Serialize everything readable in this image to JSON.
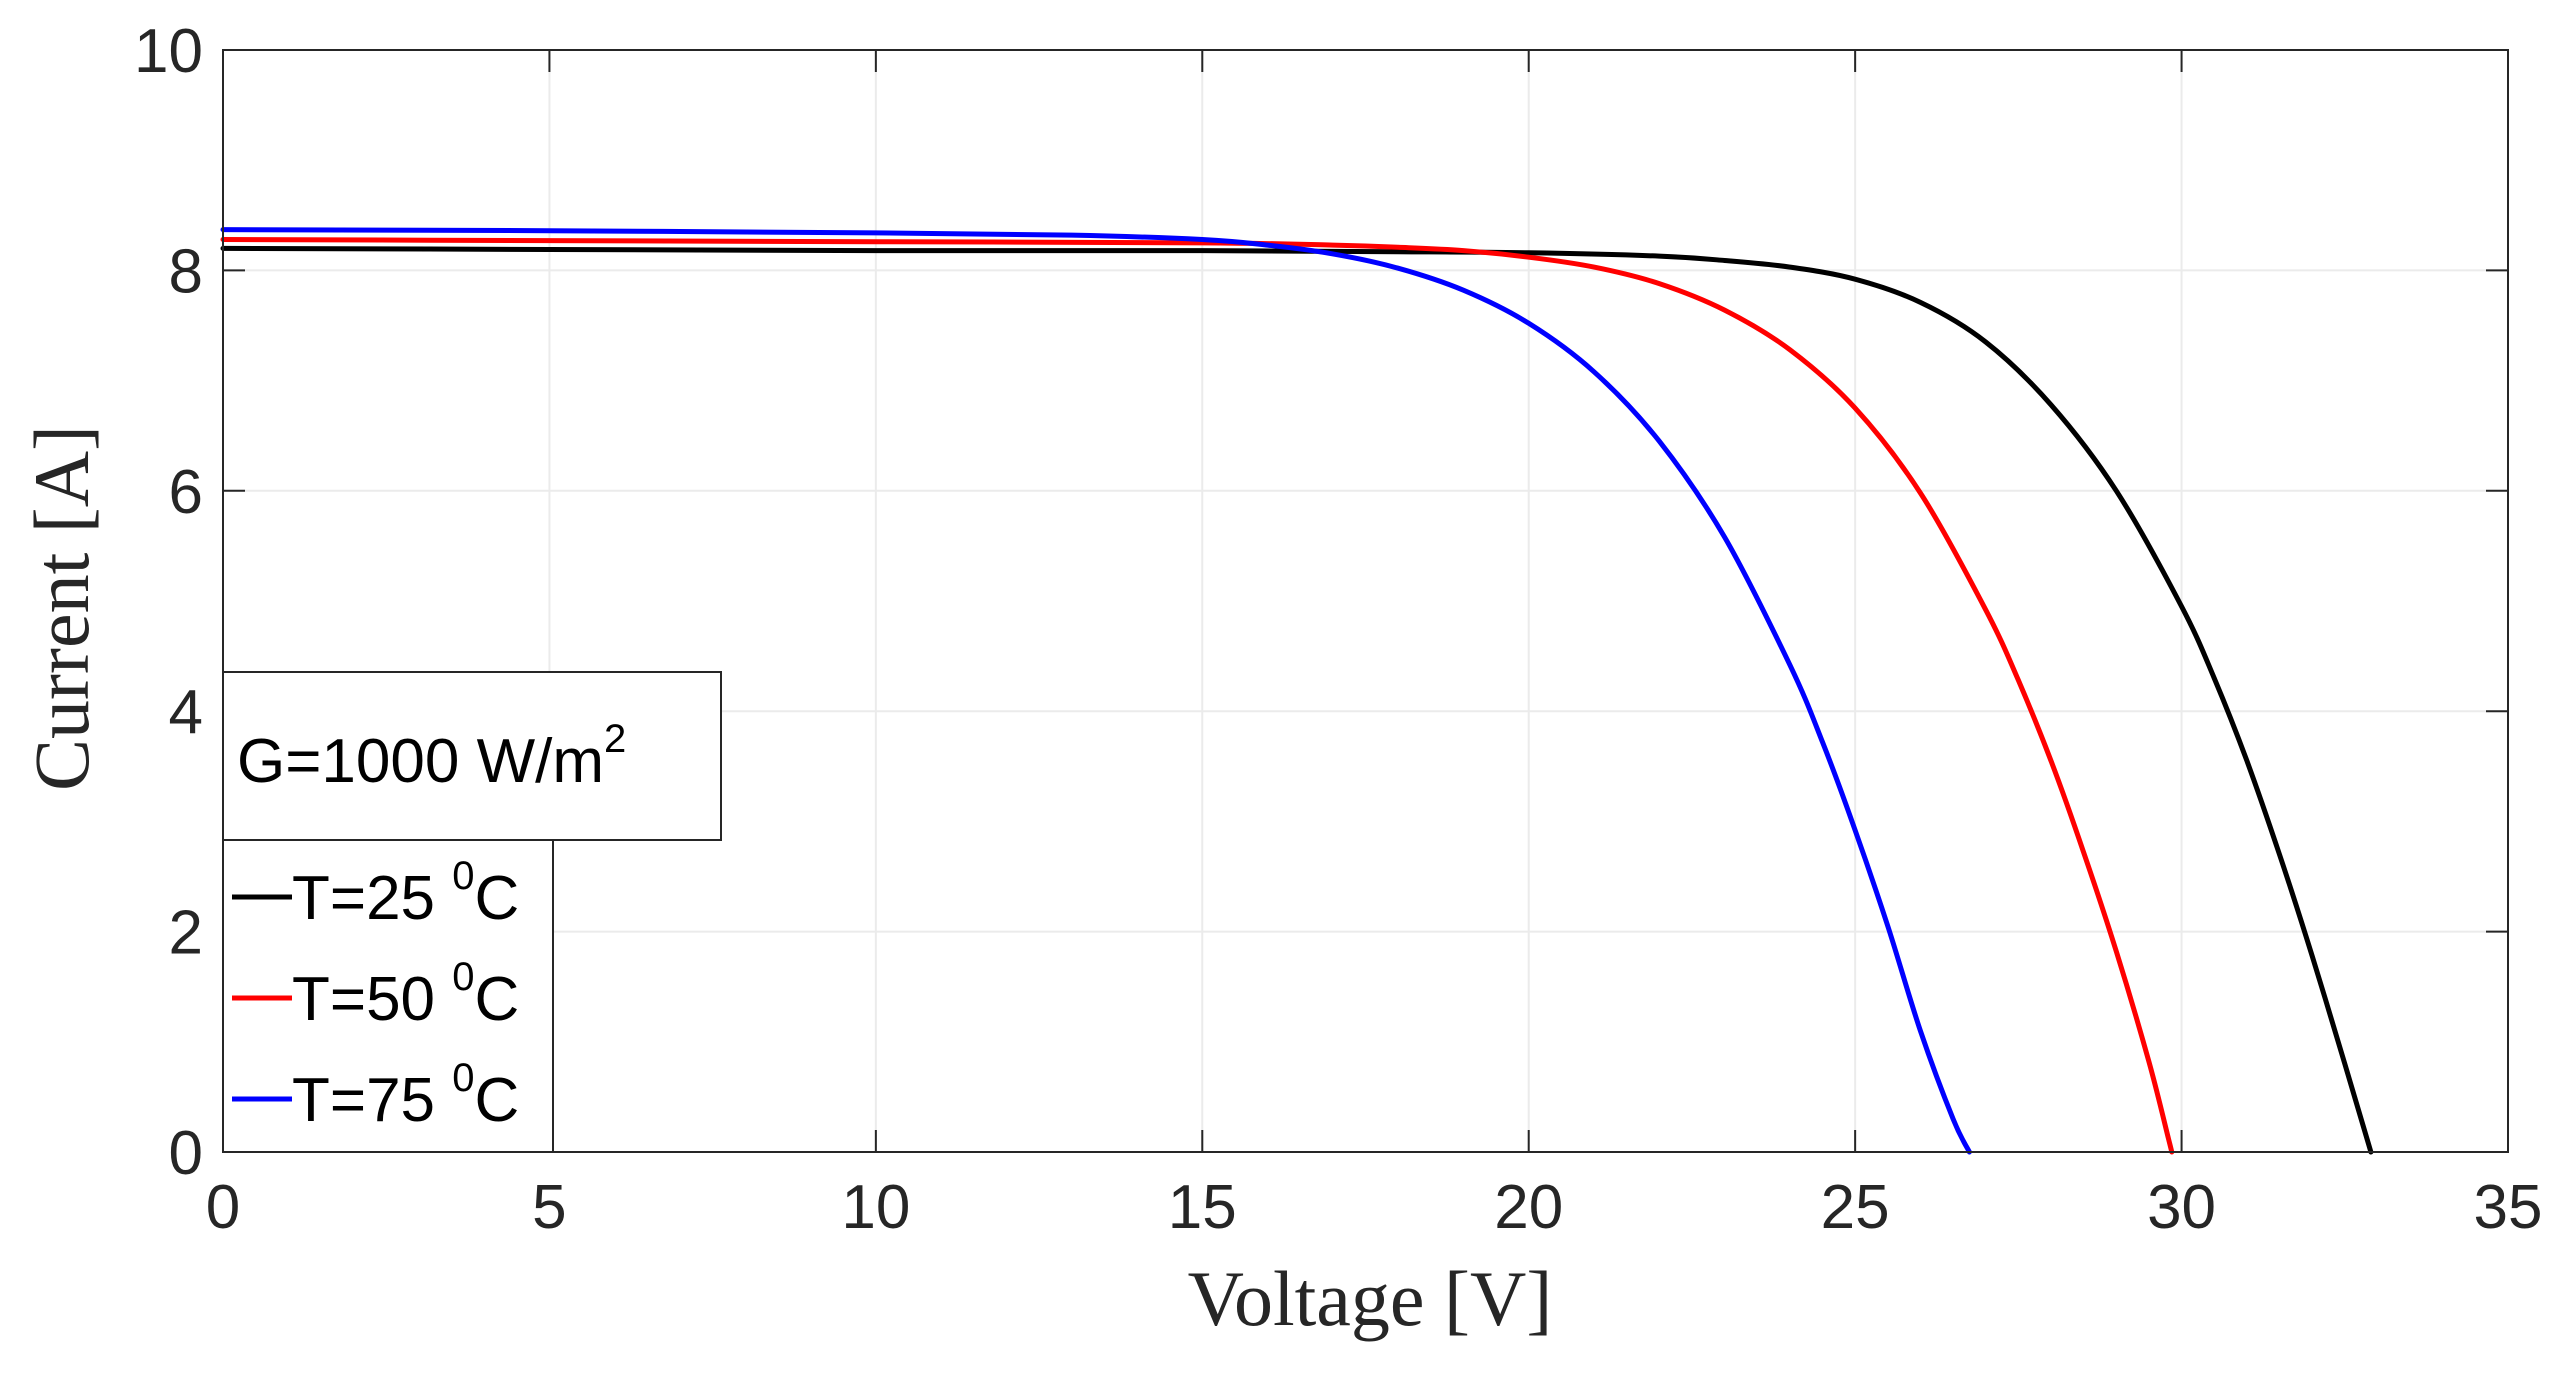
{
  "chart_data": {
    "type": "line",
    "title": "",
    "xlabel": "Voltage [V]",
    "ylabel": "Current [A]",
    "xlim": [
      0,
      35
    ],
    "ylim": [
      0,
      10
    ],
    "xticks": [
      0,
      5,
      10,
      15,
      20,
      25,
      30,
      35
    ],
    "yticks": [
      0,
      2,
      4,
      6,
      8,
      10
    ],
    "xtick_labels": [
      "0",
      "5",
      "10",
      "15",
      "20",
      "25",
      "30",
      "35"
    ],
    "ytick_labels": [
      "0",
      "2",
      "4",
      "6",
      "8",
      "10"
    ],
    "grid": true,
    "annotation": {
      "text": "G=1000 W/m",
      "sup": "2"
    },
    "legend_position": "bottom-left",
    "series": [
      {
        "name": "T=25",
        "legend_sup": "0",
        "legend_unit": "C",
        "color": "#000000",
        "x": [
          0,
          5,
          10,
          15,
          18,
          20,
          22,
          23,
          24,
          25,
          26,
          27,
          28,
          29,
          30,
          30.5,
          31,
          31.5,
          32,
          32.5,
          32.8,
          32.9
        ],
        "y": [
          8.2,
          8.19,
          8.18,
          8.18,
          8.17,
          8.16,
          8.13,
          8.09,
          8.03,
          7.92,
          7.71,
          7.35,
          6.78,
          6.0,
          4.95,
          4.3,
          3.55,
          2.7,
          1.78,
          0.8,
          0.2,
          0
        ]
      },
      {
        "name": "T=50",
        "legend_sup": "0",
        "legend_unit": "C",
        "color": "#ff0000",
        "x": [
          0,
          5,
          10,
          15,
          17,
          18,
          19,
          20,
          21,
          22,
          23,
          24,
          25,
          26,
          27,
          27.5,
          28,
          28.5,
          29,
          29.5,
          29.8,
          29.85
        ],
        "y": [
          8.28,
          8.27,
          8.26,
          8.25,
          8.23,
          8.21,
          8.18,
          8.12,
          8.03,
          7.88,
          7.64,
          7.28,
          6.75,
          5.98,
          4.92,
          4.28,
          3.55,
          2.72,
          1.82,
          0.82,
          0.12,
          0
        ]
      },
      {
        "name": "T=75",
        "legend_sup": "0",
        "legend_unit": "C",
        "color": "#0000ff",
        "x": [
          0,
          5,
          10,
          13,
          15,
          16,
          17,
          18,
          19,
          20,
          21,
          22,
          23,
          24,
          24.5,
          25,
          25.5,
          26,
          26.5,
          26.75
        ],
        "y": [
          8.37,
          8.36,
          8.34,
          8.32,
          8.28,
          8.23,
          8.15,
          8.02,
          7.82,
          7.52,
          7.08,
          6.45,
          5.58,
          4.42,
          3.72,
          2.92,
          2.05,
          1.1,
          0.3,
          0
        ]
      }
    ]
  },
  "colors": {
    "grid": "#ebebeb",
    "axis": "#262626",
    "background": "#ffffff"
  }
}
